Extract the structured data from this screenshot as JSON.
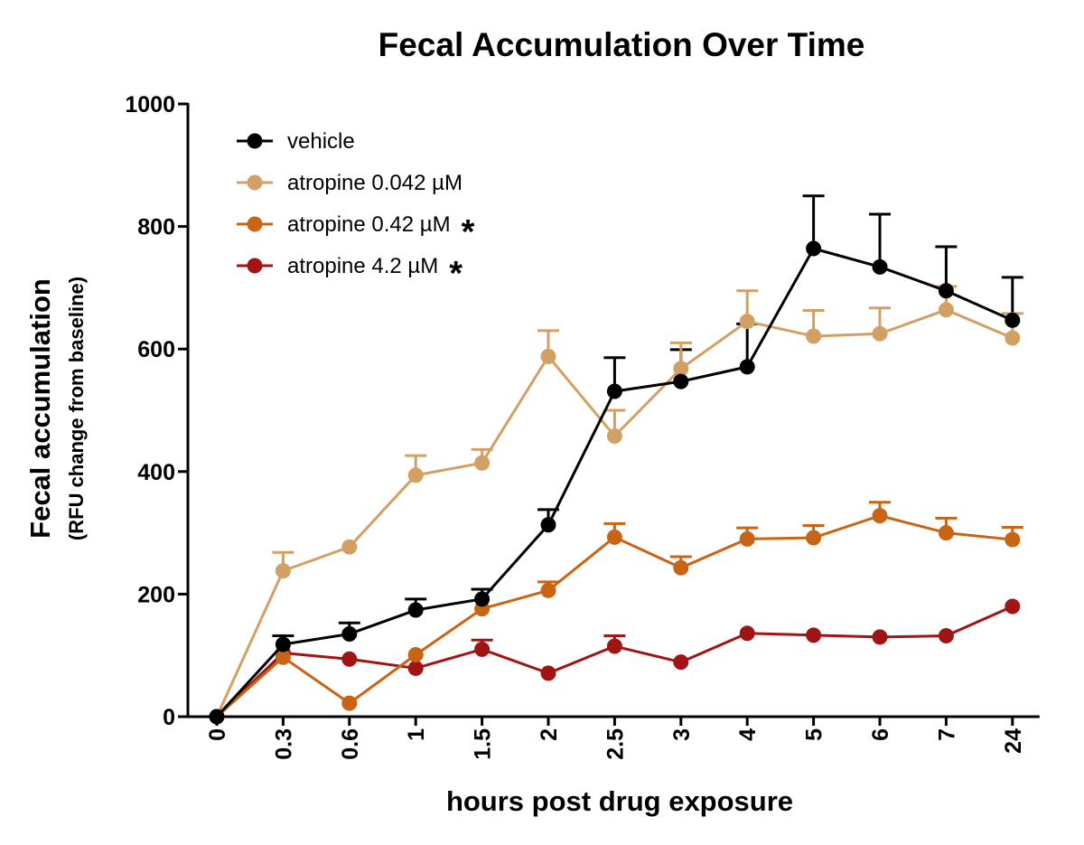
{
  "chart_data": {
    "type": "line",
    "title": "Fecal Accumulation Over Time",
    "xlabel": "hours post drug exposure",
    "ylabel": "Fecal accumulation",
    "ylabel_sub": "(RFU change from baseline)",
    "categories": [
      "0",
      "0.3",
      "0.6",
      "1",
      "1.5",
      "2",
      "2.5",
      "3",
      "4",
      "5",
      "6",
      "7",
      "24"
    ],
    "ylim": [
      0,
      1000
    ],
    "yticks": [
      "0",
      "200",
      "400",
      "600",
      "800",
      "1000"
    ],
    "grid": false,
    "legend_position": "top-left",
    "series": [
      {
        "name": "vehicle",
        "color": "#000000",
        "marked": false,
        "values": [
          0,
          118,
          135,
          174,
          192,
          313,
          531,
          547,
          571,
          764,
          734,
          695,
          647
        ],
        "errors": [
          0,
          14,
          18,
          18,
          16,
          25,
          55,
          52,
          70,
          86,
          86,
          72,
          70
        ]
      },
      {
        "name": "atropine 0.042 µM",
        "color": "#D2A064",
        "marked": false,
        "values": [
          0,
          238,
          277,
          394,
          414,
          588,
          458,
          568,
          645,
          621,
          625,
          664,
          618
        ],
        "errors": [
          0,
          30,
          0,
          32,
          22,
          42,
          42,
          42,
          50,
          42,
          42,
          38,
          40
        ]
      },
      {
        "name": "atropine 0.42 µM",
        "color": "#C86414",
        "marked": true,
        "values": [
          0,
          97,
          22,
          101,
          176,
          206,
          293,
          243,
          290,
          292,
          328,
          300,
          289
        ],
        "errors": [
          0,
          0,
          0,
          0,
          0,
          14,
          22,
          18,
          18,
          20,
          22,
          24,
          20
        ]
      },
      {
        "name": "atropine 4.2 µM",
        "color": "#A01414",
        "marked": true,
        "values": [
          0,
          104,
          94,
          79,
          110,
          71,
          115,
          89,
          136,
          133,
          130,
          132,
          180
        ],
        "errors": [
          0,
          0,
          0,
          0,
          15,
          0,
          17,
          0,
          0,
          0,
          0,
          0,
          0
        ]
      }
    ],
    "significance_marker": "*"
  }
}
